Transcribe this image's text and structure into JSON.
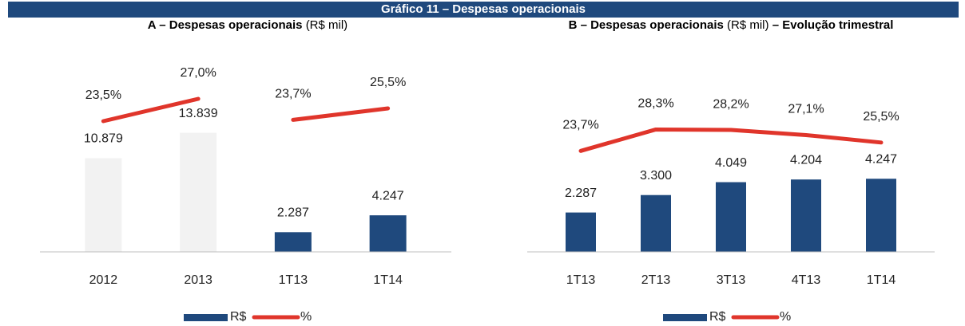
{
  "header": {
    "title": "Gráfico 11 – Despesas operacionais"
  },
  "chart_data": [
    {
      "type": "bar_line",
      "subtitle_parts": [
        "A – Despesas operacionais",
        "(R$ mil)"
      ],
      "categories": [
        "2012",
        "2013",
        "1T13",
        "1T14"
      ],
      "ylim": [
        0,
        20000
      ],
      "y2lim": [
        3,
        30
      ],
      "line_break_after": 1,
      "series": [
        {
          "name": "R$",
          "kind": "bar",
          "color": "#1f497d",
          "bar_colors": [
            "#f2f2f2",
            "#f2f2f2",
            "#1f497d",
            "#1f497d"
          ],
          "values": [
            10879,
            13839,
            2287,
            4247
          ],
          "value_labels": [
            "10.879",
            "13.839",
            "2.287",
            "4.247"
          ]
        },
        {
          "name": "%",
          "kind": "line",
          "axis": "y2",
          "color": "#e0352b",
          "values": [
            23.5,
            27.0,
            23.7,
            25.5
          ],
          "value_labels": [
            "23,5%",
            "27,0%",
            "23,7%",
            "25,5%"
          ]
        }
      ]
    },
    {
      "type": "bar_line",
      "subtitle_parts": [
        "B – Despesas operacionais",
        "(R$ mil)",
        "– Evolução trimestral"
      ],
      "categories": [
        "1T13",
        "2T13",
        "3T13",
        "4T13",
        "1T14"
      ],
      "ylim": [
        0,
        10000
      ],
      "y2lim": [
        2,
        39
      ],
      "series": [
        {
          "name": "R$",
          "kind": "bar",
          "color": "#1f497d",
          "values": [
            2287,
            3300,
            4049,
            4204,
            4247
          ],
          "value_labels": [
            "2.287",
            "3.300",
            "4.049",
            "4.204",
            "4.247"
          ]
        },
        {
          "name": "%",
          "kind": "line",
          "axis": "y2",
          "color": "#e0352b",
          "values": [
            23.7,
            28.3,
            28.2,
            27.1,
            25.5
          ],
          "value_labels": [
            "23,7%",
            "28,3%",
            "28,2%",
            "27,1%",
            "25,5%"
          ]
        }
      ]
    }
  ]
}
